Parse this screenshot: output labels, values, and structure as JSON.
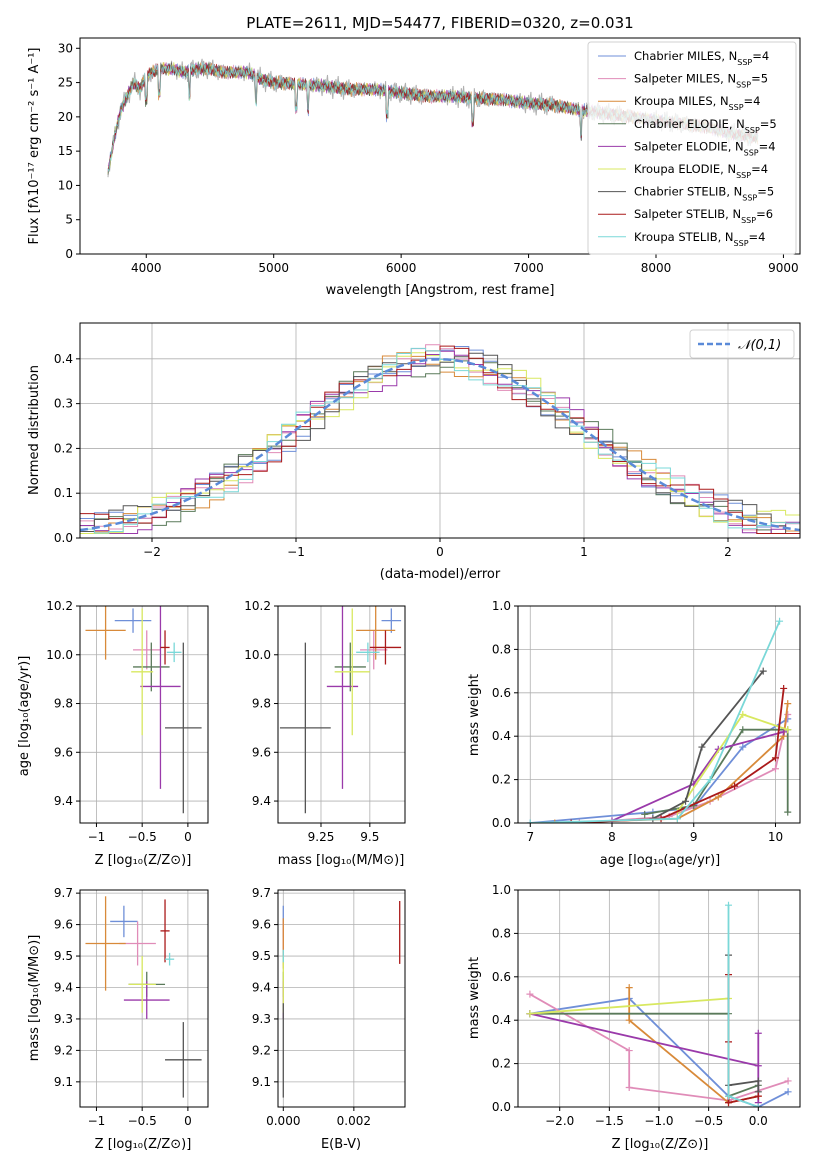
{
  "figure": {
    "title": "PLATE=2611, MJD=54477, FIBERID=0320, z=0.031",
    "model_colors": [
      "#6f8fd8",
      "#e08cb8",
      "#d88a3a",
      "#5a7a5a",
      "#9a3aaa",
      "#d8e860",
      "#555555",
      "#aa1a1a",
      "#7ad8d8"
    ]
  },
  "chart_data": [
    {
      "id": "spectrum",
      "type": "line",
      "title": "PLATE=2611, MJD=54477, FIBERID=0320, z=0.031",
      "xlabel": "wavelength [Angstrom, rest frame]",
      "ylabel": "Flux [fλ10⁻¹⁷ erg cm⁻² s⁻¹ A⁻¹]",
      "xlim": [
        3480,
        9130
      ],
      "ylim": [
        0,
        31.5
      ],
      "xticks": [
        4000,
        5000,
        6000,
        7000,
        8000,
        9000
      ],
      "yticks": [
        0,
        5,
        10,
        15,
        20,
        25,
        30
      ],
      "grid": false,
      "legend_position": "top-right",
      "observed": {
        "x": [
          3700,
          3750,
          3800,
          3850,
          3900,
          3950,
          4000,
          4100,
          4200,
          4300,
          4400,
          4500,
          4600,
          4700,
          4800,
          4900,
          5000,
          5200,
          5400,
          5600,
          5800,
          6000,
          6200,
          6400,
          6600,
          6800,
          7000,
          7200,
          7400,
          7600,
          7800,
          8000,
          8200,
          8400,
          8600,
          8800
        ],
        "y": [
          12,
          17,
          21,
          23,
          25,
          24,
          26,
          27,
          27,
          26.5,
          27,
          27,
          26.5,
          26.5,
          26.5,
          25.5,
          25,
          24.8,
          24.5,
          24,
          24,
          23.5,
          23,
          23,
          22.7,
          22.5,
          22,
          21.7,
          21,
          20.5,
          20,
          19.5,
          19,
          18.5,
          17.5,
          17
        ]
      },
      "legend": [
        {
          "label": "Chabrier MILES, N",
          "sub": "SSP",
          "suffix": "=4"
        },
        {
          "label": "Salpeter MILES, N",
          "sub": "SSP",
          "suffix": "=5"
        },
        {
          "label": "Kroupa MILES, N",
          "sub": "SSP",
          "suffix": "=4"
        },
        {
          "label": "Chabrier ELODIE, N",
          "sub": "SSP",
          "suffix": "=5"
        },
        {
          "label": "Salpeter ELODIE, N",
          "sub": "SSP",
          "suffix": "=4"
        },
        {
          "label": "Kroupa ELODIE, N",
          "sub": "SSP",
          "suffix": "=4"
        },
        {
          "label": "Chabrier STELIB, N",
          "sub": "SSP",
          "suffix": "=5"
        },
        {
          "label": "Salpeter STELIB, N",
          "sub": "SSP",
          "suffix": "=6"
        },
        {
          "label": "Kroupa STELIB, N",
          "sub": "SSP",
          "suffix": "=4"
        }
      ]
    },
    {
      "id": "residuals",
      "type": "line",
      "xlabel": "(data-model)/error",
      "ylabel": "Normed distribution",
      "xlim": [
        -2.5,
        2.5
      ],
      "ylim": [
        0,
        0.48
      ],
      "xticks": [
        -2,
        -1,
        0,
        1,
        2
      ],
      "yticks": [
        0.0,
        0.1,
        0.2,
        0.3,
        0.4
      ],
      "grid": true,
      "legend_position": "top-right",
      "legend": "𝒩(0,1)",
      "bin_width": 0.1,
      "gaussian": {
        "mean": 0,
        "sigma": 1
      }
    },
    {
      "id": "age_vs_Z",
      "type": "scatter",
      "xlabel": "Z [log₁₀(Z/Z⊙)]",
      "ylabel": "age  [log₁₀(age/yr)]",
      "xlim": [
        -1.18,
        0.22
      ],
      "ylim": [
        9.31,
        10.2
      ],
      "xticks": [
        -1.0,
        -0.5,
        0.0
      ],
      "yticks": [
        9.4,
        9.6,
        9.8,
        10.0,
        10.2
      ],
      "grid": true,
      "points": [
        {
          "x": -0.6,
          "xerr": 0.2,
          "y": 10.14,
          "yerr": 0.05
        },
        {
          "x": -0.45,
          "xerr": 0.15,
          "y": 10.02,
          "yerr": 0.08
        },
        {
          "x": -0.9,
          "xerr": 0.22,
          "y": 10.1,
          "yerr": 0.12
        },
        {
          "x": -0.4,
          "xerr": 0.2,
          "y": 9.95,
          "yerr": 0.1
        },
        {
          "x": -0.3,
          "xerr": 0.22,
          "y": 9.87,
          "yerr": 0.42
        },
        {
          "x": -0.5,
          "xerr": 0.12,
          "y": 9.93,
          "yerr": 0.26
        },
        {
          "x": -0.05,
          "xerr": 0.2,
          "y": 9.7,
          "yerr": 0.35
        },
        {
          "x": -0.25,
          "xerr": 0.05,
          "y": 10.03,
          "yerr": 0.07
        },
        {
          "x": -0.15,
          "xerr": 0.08,
          "y": 10.01,
          "yerr": 0.04
        }
      ]
    },
    {
      "id": "age_vs_mass",
      "type": "scatter",
      "xlabel": "mass [log₁₀(M/M⊙)]",
      "ylabel": "",
      "xlim": [
        9.03,
        9.68
      ],
      "ylim": [
        9.31,
        10.2
      ],
      "xticks": [
        9.25,
        9.5
      ],
      "yticks": [
        9.4,
        9.6,
        9.8,
        10.0,
        10.2
      ],
      "grid": true,
      "points": [
        {
          "x": 9.61,
          "xerr": 0.05,
          "y": 10.14,
          "yerr": 0.05
        },
        {
          "x": 9.52,
          "xerr": 0.07,
          "y": 10.02,
          "yerr": 0.08
        },
        {
          "x": 9.53,
          "xerr": 0.1,
          "y": 10.1,
          "yerr": 0.12
        },
        {
          "x": 9.4,
          "xerr": 0.08,
          "y": 9.95,
          "yerr": 0.1
        },
        {
          "x": 9.36,
          "xerr": 0.08,
          "y": 9.87,
          "yerr": 0.42
        },
        {
          "x": 9.41,
          "xerr": 0.09,
          "y": 9.93,
          "yerr": 0.26
        },
        {
          "x": 9.17,
          "xerr": 0.13,
          "y": 9.7,
          "yerr": 0.35
        },
        {
          "x": 9.58,
          "xerr": 0.08,
          "y": 10.03,
          "yerr": 0.07
        },
        {
          "x": 9.49,
          "xerr": 0.06,
          "y": 10.01,
          "yerr": 0.04
        }
      ]
    },
    {
      "id": "mass_weight_vs_age",
      "type": "line",
      "xlabel": "age  [log₁₀(age/yr)]",
      "ylabel": "mass weight",
      "xlim": [
        6.85,
        10.3
      ],
      "ylim": [
        0,
        1.0
      ],
      "xticks": [
        7,
        8,
        9,
        10
      ],
      "yticks": [
        0.0,
        0.2,
        0.4,
        0.6,
        0.8,
        1.0
      ],
      "grid": true,
      "series": [
        {
          "x": [
            7.0,
            8.5,
            9.0,
            9.6,
            10.15
          ],
          "y": [
            0.0,
            0.05,
            0.07,
            0.35,
            0.48
          ]
        },
        {
          "x": [
            7.6,
            8.7,
            9.2,
            10.0,
            10.15
          ],
          "y": [
            0.0,
            0.03,
            0.1,
            0.25,
            0.5
          ]
        },
        {
          "x": [
            7.3,
            8.8,
            9.3,
            10.1,
            10.15
          ],
          "y": [
            0.0,
            0.02,
            0.12,
            0.4,
            0.55
          ]
        },
        {
          "x": [
            8.4,
            9.0,
            9.6,
            10.15,
            10.15
          ],
          "y": [
            0.04,
            0.08,
            0.43,
            0.43,
            0.05
          ]
        },
        {
          "x": [
            8.0,
            9.0,
            9.3,
            10.1
          ],
          "y": [
            0.01,
            0.18,
            0.34,
            0.42
          ]
        },
        {
          "x": [
            8.8,
            9.6,
            10.15
          ],
          "y": [
            0.05,
            0.5,
            0.43
          ]
        },
        {
          "x": [
            8.5,
            8.9,
            9.1,
            9.85
          ],
          "y": [
            0.02,
            0.1,
            0.35,
            0.7
          ]
        },
        {
          "x": [
            7.5,
            8.6,
            9.5,
            10.0,
            10.1
          ],
          "y": [
            0.0,
            0.02,
            0.17,
            0.3,
            0.62
          ]
        },
        {
          "x": [
            7.0,
            8.8,
            9.2,
            10.05
          ],
          "y": [
            0.0,
            0.02,
            0.2,
            0.93
          ]
        }
      ]
    },
    {
      "id": "mass_vs_Z",
      "type": "scatter",
      "xlabel": "Z [log₁₀(Z/Z⊙)]",
      "ylabel": "mass [log₁₀(M/M⊙)]",
      "xlim": [
        -1.18,
        0.22
      ],
      "ylim": [
        9.02,
        9.71
      ],
      "xticks": [
        -1.0,
        -0.5,
        0.0
      ],
      "yticks": [
        9.1,
        9.2,
        9.3,
        9.4,
        9.5,
        9.6,
        9.7
      ],
      "grid": true,
      "points": [
        {
          "x": -0.7,
          "xerr": 0.15,
          "y": 9.61,
          "yerr": 0.05
        },
        {
          "x": -0.55,
          "xerr": 0.2,
          "y": 9.54,
          "yerr": 0.07
        },
        {
          "x": -0.9,
          "xerr": 0.22,
          "y": 9.54,
          "yerr": 0.15
        },
        {
          "x": -0.45,
          "xerr": 0.2,
          "y": 9.41,
          "yerr": 0.04
        },
        {
          "x": -0.45,
          "xerr": 0.25,
          "y": 9.36,
          "yerr": 0.06
        },
        {
          "x": -0.5,
          "xerr": 0.15,
          "y": 9.41,
          "yerr": 0.09
        },
        {
          "x": -0.05,
          "xerr": 0.2,
          "y": 9.17,
          "yerr": 0.12
        },
        {
          "x": -0.25,
          "xerr": 0.05,
          "y": 9.58,
          "yerr": 0.1
        },
        {
          "x": -0.2,
          "xerr": 0.05,
          "y": 9.49,
          "yerr": 0.02
        }
      ]
    },
    {
      "id": "mass_vs_ebv",
      "type": "scatter",
      "xlabel": "E(B-V)",
      "ylabel": "",
      "xlim": [
        -0.00015,
        0.00345
      ],
      "ylim": [
        9.02,
        9.71
      ],
      "xticks": [
        0.0,
        0.002
      ],
      "xtick_labels": [
        "0.000",
        "0.002"
      ],
      "yticks": [
        9.1,
        9.2,
        9.3,
        9.4,
        9.5,
        9.6,
        9.7
      ],
      "grid": true,
      "points": [
        {
          "x": 0.0,
          "y": 9.61,
          "yerr": 0.05
        },
        {
          "x": 0.0,
          "y": 9.54,
          "yerr": 0.07
        },
        {
          "x": 0.0,
          "y": 9.54,
          "yerr": 0.08
        },
        {
          "x": 0.0,
          "y": 9.41,
          "yerr": 0.04
        },
        {
          "x": 0.0,
          "y": 9.36,
          "yerr": 0.06
        },
        {
          "x": 0.0,
          "y": 9.41,
          "yerr": 0.09
        },
        {
          "x": 0.0,
          "y": 9.2,
          "yerr": 0.15
        },
        {
          "x": 0.0033,
          "y": 9.575,
          "yerr": 0.1
        },
        {
          "x": 0.0,
          "y": 9.5,
          "yerr": 0.02
        }
      ]
    },
    {
      "id": "mass_weight_vs_Z",
      "type": "line",
      "xlabel": "Z [log₁₀(Z/Z⊙)]",
      "ylabel": "mass weight",
      "xlim": [
        -2.42,
        0.42
      ],
      "ylim": [
        0,
        1.0
      ],
      "xticks": [
        -2.0,
        -1.5,
        -1.0,
        -0.5,
        0.0
      ],
      "xtick_labels": [
        "−2.0",
        "−1.5",
        "−1.0",
        "−0.5",
        "0.0"
      ],
      "yticks": [
        0.0,
        0.2,
        0.4,
        0.6,
        0.8,
        1.0
      ],
      "grid": true,
      "series": [
        {
          "x": [
            -2.3,
            -1.3,
            -0.3,
            0.0,
            0.3
          ],
          "y": [
            0.43,
            0.5,
            0.05,
            0.0,
            0.07
          ]
        },
        {
          "x": [
            -2.3,
            -1.3,
            -1.3,
            -0.3,
            0.3
          ],
          "y": [
            0.52,
            0.26,
            0.09,
            0.03,
            0.12
          ]
        },
        {
          "x": [
            -1.3,
            -1.3,
            -0.3,
            0.0
          ],
          "y": [
            0.55,
            0.4,
            0.02,
            0.05
          ]
        },
        {
          "x": [
            -2.3,
            -0.3,
            -0.3,
            0.0
          ],
          "y": [
            0.43,
            0.43,
            0.05,
            0.1
          ]
        },
        {
          "x": [
            -2.3,
            0.0,
            0.0,
            0.0
          ],
          "y": [
            0.43,
            0.19,
            0.34,
            0.02
          ]
        },
        {
          "x": [
            -2.3,
            -0.3,
            -0.3
          ],
          "y": [
            0.43,
            0.5,
            0.05
          ]
        },
        {
          "x": [
            -0.3,
            -0.3,
            0.0,
            0.0
          ],
          "y": [
            0.7,
            0.1,
            0.12,
            0.07
          ]
        },
        {
          "x": [
            -0.3,
            -0.3,
            -0.3,
            0.0
          ],
          "y": [
            0.61,
            0.3,
            0.02,
            0.05
          ]
        },
        {
          "x": [
            -0.3,
            -0.3,
            0.0
          ],
          "y": [
            0.93,
            0.05,
            0.0
          ]
        }
      ]
    }
  ]
}
